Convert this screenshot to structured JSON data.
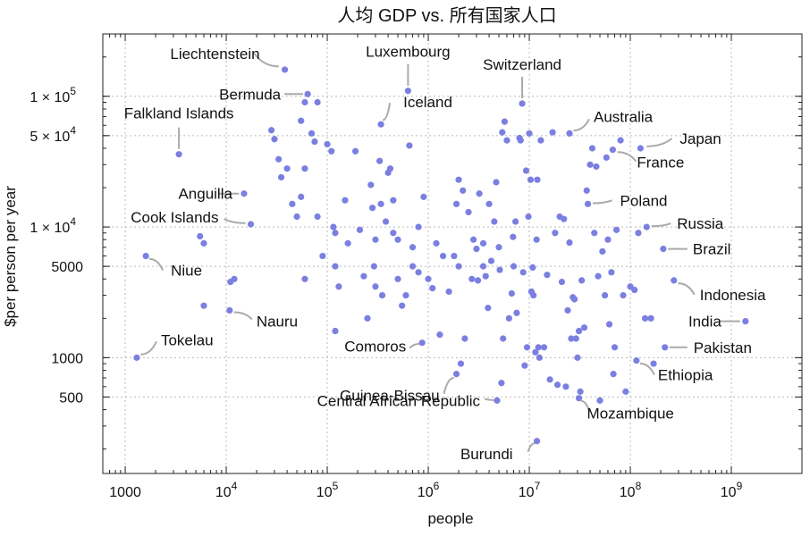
{
  "chart_data": {
    "type": "scatter",
    "title": "人均 GDP vs. 所有国家人口",
    "xlabel": "people",
    "ylabel": "$per person per year",
    "x_scale": "log",
    "y_scale": "log",
    "xlim": [
      600,
      5000000000
    ],
    "ylim": [
      130,
      300000
    ],
    "grid": true,
    "point_color": "#7b7fe0",
    "x_ticks": [
      {
        "value": 1000,
        "base": "1000",
        "exp": ""
      },
      {
        "value": 10000,
        "base": "10",
        "exp": "4"
      },
      {
        "value": 100000,
        "base": "10",
        "exp": "5"
      },
      {
        "value": 1000000,
        "base": "10",
        "exp": "6"
      },
      {
        "value": 10000000,
        "base": "10",
        "exp": "7"
      },
      {
        "value": 100000000,
        "base": "10",
        "exp": "8"
      },
      {
        "value": 1000000000,
        "base": "10",
        "exp": "9"
      }
    ],
    "y_ticks": [
      {
        "value": 500,
        "label": "500"
      },
      {
        "value": 1000,
        "label": "1000"
      },
      {
        "value": 5000,
        "label": "5000"
      },
      {
        "value": 10000,
        "label": "1 × 10",
        "exp": "4"
      },
      {
        "value": 50000,
        "label": "5 × 10",
        "exp": "4"
      },
      {
        "value": 100000,
        "label": "1 × 10",
        "exp": "5"
      }
    ],
    "labeled_points": [
      {
        "name": "Liechtenstein",
        "x": 38000,
        "y": 160000
      },
      {
        "name": "Luxembourg",
        "x": 630000,
        "y": 110000
      },
      {
        "name": "Switzerland",
        "x": 8500000,
        "y": 88000
      },
      {
        "name": "Bermuda",
        "x": 64000,
        "y": 104000
      },
      {
        "name": "Iceland",
        "x": 340000,
        "y": 61000
      },
      {
        "name": "Falkland Islands",
        "x": 3400,
        "y": 36000
      },
      {
        "name": "Australia",
        "x": 25000000,
        "y": 52000
      },
      {
        "name": "Japan",
        "x": 126000000,
        "y": 40000
      },
      {
        "name": "France",
        "x": 67000000,
        "y": 39000
      },
      {
        "name": "Anguilla",
        "x": 15000,
        "y": 18000
      },
      {
        "name": "Poland",
        "x": 38000000,
        "y": 15000
      },
      {
        "name": "Cook Islands",
        "x": 17500,
        "y": 10500
      },
      {
        "name": "Russia",
        "x": 145000000,
        "y": 10000
      },
      {
        "name": "Brazil",
        "x": 212000000,
        "y": 6800
      },
      {
        "name": "Niue",
        "x": 1600,
        "y": 6000
      },
      {
        "name": "Indonesia",
        "x": 270000000,
        "y": 3900
      },
      {
        "name": "India",
        "x": 1380000000,
        "y": 1900
      },
      {
        "name": "Pakistan",
        "x": 220000000,
        "y": 1200
      },
      {
        "name": "Nauru",
        "x": 10800,
        "y": 2300
      },
      {
        "name": "Tokelau",
        "x": 1300,
        "y": 1000
      },
      {
        "name": "Comoros",
        "x": 870000,
        "y": 1300
      },
      {
        "name": "Ethiopia",
        "x": 115000000,
        "y": 950
      },
      {
        "name": "Guinea-Bissau",
        "x": 1900000,
        "y": 750
      },
      {
        "name": "Central African Republic",
        "x": 4800000,
        "y": 470
      },
      {
        "name": "Mozambique",
        "x": 31000000,
        "y": 490
      },
      {
        "name": "Burundi",
        "x": 11900000,
        "y": 230
      }
    ],
    "points": [
      [
        5500,
        8500
      ],
      [
        6000,
        7500
      ],
      [
        6000,
        2500
      ],
      [
        11000,
        3800
      ],
      [
        12000,
        4000
      ],
      [
        28000,
        55000
      ],
      [
        30000,
        47000
      ],
      [
        33000,
        33000
      ],
      [
        35000,
        24000
      ],
      [
        40000,
        28000
      ],
      [
        45000,
        15000
      ],
      [
        50000,
        12000
      ],
      [
        55000,
        65000
      ],
      [
        60000,
        28000
      ],
      [
        55000,
        17000
      ],
      [
        60000,
        4000
      ],
      [
        60000,
        90000
      ],
      [
        80000,
        90000
      ],
      [
        70000,
        52000
      ],
      [
        75000,
        45000
      ],
      [
        80000,
        12000
      ],
      [
        90000,
        6000
      ],
      [
        100000,
        43000
      ],
      [
        110000,
        38000
      ],
      [
        115000,
        10000
      ],
      [
        120000,
        5000
      ],
      [
        120000,
        9000
      ],
      [
        120000,
        1600
      ],
      [
        130000,
        3500
      ],
      [
        150000,
        16000
      ],
      [
        160000,
        7500
      ],
      [
        190000,
        38000
      ],
      [
        210000,
        9500
      ],
      [
        230000,
        4200
      ],
      [
        250000,
        2000
      ],
      [
        270000,
        21000
      ],
      [
        280000,
        14000
      ],
      [
        290000,
        5000
      ],
      [
        300000,
        3500
      ],
      [
        300000,
        8000
      ],
      [
        330000,
        32000
      ],
      [
        340000,
        15000
      ],
      [
        350000,
        3000
      ],
      [
        380000,
        11000
      ],
      [
        400000,
        26000
      ],
      [
        420000,
        28000
      ],
      [
        450000,
        16000
      ],
      [
        450000,
        9000
      ],
      [
        500000,
        4000
      ],
      [
        500000,
        8000
      ],
      [
        550000,
        2500
      ],
      [
        600000,
        3000
      ],
      [
        650000,
        42000
      ],
      [
        700000,
        7000
      ],
      [
        700000,
        5000
      ],
      [
        800000,
        4500
      ],
      [
        800000,
        10000
      ],
      [
        900000,
        17000
      ],
      [
        1000000,
        4000
      ],
      [
        1100000,
        3400
      ],
      [
        1200000,
        7500
      ],
      [
        1300000,
        1500
      ],
      [
        1400000,
        6000
      ],
      [
        1600000,
        3200
      ],
      [
        1800000,
        6000
      ],
      [
        1900000,
        15000
      ],
      [
        2000000,
        23000
      ],
      [
        2000000,
        5000
      ],
      [
        2100000,
        900
      ],
      [
        2200000,
        19000
      ],
      [
        2300000,
        1400
      ],
      [
        2500000,
        13000
      ],
      [
        2700000,
        4000
      ],
      [
        2800000,
        8000
      ],
      [
        3000000,
        6800
      ],
      [
        3100000,
        3900
      ],
      [
        3200000,
        18000
      ],
      [
        3500000,
        5000
      ],
      [
        3500000,
        7500
      ],
      [
        3700000,
        4200
      ],
      [
        3900000,
        2400
      ],
      [
        4000000,
        15000
      ],
      [
        4200000,
        5500
      ],
      [
        4500000,
        11000
      ],
      [
        4700000,
        22000
      ],
      [
        5000000,
        7000
      ],
      [
        5100000,
        4700
      ],
      [
        5300000,
        640
      ],
      [
        5400000,
        53000
      ],
      [
        5500000,
        1400
      ],
      [
        5700000,
        64000
      ],
      [
        6000000,
        46000
      ],
      [
        6300000,
        2000
      ],
      [
        6700000,
        3100
      ],
      [
        6900000,
        8400
      ],
      [
        7000000,
        5000
      ],
      [
        7300000,
        11000
      ],
      [
        7500000,
        2200
      ],
      [
        8000000,
        48000
      ],
      [
        8200000,
        46000
      ],
      [
        8700000,
        4500
      ],
      [
        9000000,
        870
      ],
      [
        9300000,
        27000
      ],
      [
        9500000,
        1200
      ],
      [
        9800000,
        12000
      ],
      [
        10000000,
        52000
      ],
      [
        10300000,
        23000
      ],
      [
        10500000,
        3200
      ],
      [
        10800000,
        4900
      ],
      [
        11000000,
        3000
      ],
      [
        11500000,
        1100
      ],
      [
        11800000,
        8000
      ],
      [
        12000000,
        23000
      ],
      [
        12300000,
        1200
      ],
      [
        12600000,
        1000
      ],
      [
        13000000,
        46000
      ],
      [
        14000000,
        1200
      ],
      [
        15000000,
        4300
      ],
      [
        16000000,
        680
      ],
      [
        17000000,
        53000
      ],
      [
        18000000,
        9000
      ],
      [
        19000000,
        620
      ],
      [
        20000000,
        12000
      ],
      [
        21000000,
        3800
      ],
      [
        22000000,
        11500
      ],
      [
        23000000,
        600
      ],
      [
        24000000,
        2300
      ],
      [
        25000000,
        7600
      ],
      [
        26000000,
        1400
      ],
      [
        27000000,
        2900
      ],
      [
        28000000,
        2800
      ],
      [
        29000000,
        1400
      ],
      [
        30000000,
        1000
      ],
      [
        31000000,
        1600
      ],
      [
        32000000,
        550
      ],
      [
        33000000,
        3900
      ],
      [
        35000000,
        1700
      ],
      [
        37000000,
        19000
      ],
      [
        40000000,
        30000
      ],
      [
        42000000,
        40000
      ],
      [
        44000000,
        9000
      ],
      [
        46000000,
        29000
      ],
      [
        48000000,
        4200
      ],
      [
        50000000,
        470
      ],
      [
        53000000,
        6500
      ],
      [
        56000000,
        3000
      ],
      [
        58000000,
        34000
      ],
      [
        60000000,
        8000
      ],
      [
        62000000,
        1800
      ],
      [
        65000000,
        4500
      ],
      [
        68000000,
        750
      ],
      [
        70000000,
        1200
      ],
      [
        73000000,
        9500
      ],
      [
        80000000,
        46000
      ],
      [
        85000000,
        3000
      ],
      [
        90000000,
        550
      ],
      [
        100000000,
        3500
      ],
      [
        110000000,
        3300
      ],
      [
        120000000,
        9000
      ],
      [
        140000000,
        2000
      ],
      [
        160000000,
        2000
      ],
      [
        170000000,
        900
      ]
    ]
  }
}
